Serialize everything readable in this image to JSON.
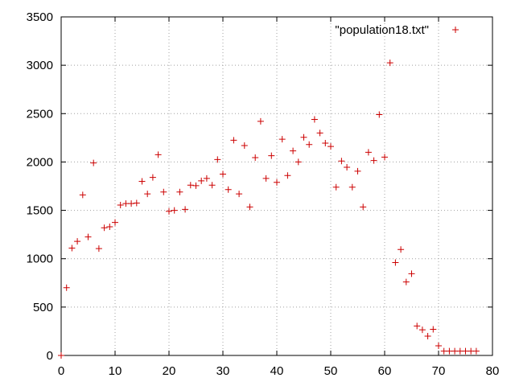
{
  "chart_data": {
    "type": "scatter",
    "title": "",
    "xlabel": "",
    "ylabel": "",
    "xlim": [
      0,
      80
    ],
    "ylim": [
      0,
      3500
    ],
    "x_ticks": [
      "0",
      "10",
      "20",
      "30",
      "40",
      "50",
      "60",
      "70",
      "80"
    ],
    "y_ticks": [
      "0",
      "500",
      "1000",
      "1500",
      "2000",
      "2500",
      "3000",
      "3500"
    ],
    "grid": true,
    "legend_position": "top-right",
    "marker": "plus",
    "series": [
      {
        "name": "\"population18.txt\"",
        "color": "#cc0000",
        "x": [
          0,
          1,
          2,
          3,
          4,
          5,
          6,
          7,
          8,
          9,
          10,
          11,
          12,
          13,
          14,
          15,
          16,
          17,
          18,
          19,
          20,
          21,
          22,
          23,
          24,
          25,
          26,
          27,
          28,
          29,
          30,
          31,
          32,
          33,
          34,
          35,
          36,
          37,
          38,
          39,
          40,
          41,
          42,
          43,
          44,
          45,
          46,
          47,
          48,
          49,
          50,
          51,
          52,
          53,
          54,
          55,
          56,
          57,
          58,
          59,
          60,
          61,
          62,
          63,
          64,
          65,
          66,
          67,
          68,
          69,
          70,
          71,
          72,
          73,
          74,
          75,
          76,
          77
        ],
        "y": [
          0,
          700,
          1110,
          1180,
          1660,
          1225,
          1990,
          1105,
          1320,
          1330,
          1375,
          1555,
          1570,
          1570,
          1575,
          1800,
          1670,
          1840,
          2075,
          1690,
          1490,
          1500,
          1690,
          1510,
          1760,
          1755,
          1805,
          1830,
          1760,
          2025,
          1875,
          1715,
          2225,
          1670,
          2170,
          1535,
          2045,
          2420,
          1830,
          2065,
          1790,
          2235,
          1860,
          2115,
          2000,
          2255,
          2180,
          2440,
          2300,
          2195,
          2160,
          1740,
          2010,
          1945,
          1740,
          1905,
          1535,
          2100,
          2015,
          2490,
          2050,
          3025,
          960,
          1095,
          760,
          845,
          305,
          265,
          200,
          270,
          100,
          45,
          45,
          45,
          45,
          45,
          45,
          45
        ]
      }
    ]
  }
}
